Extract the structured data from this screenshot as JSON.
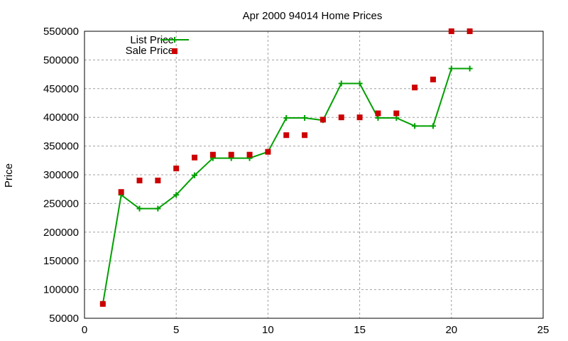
{
  "chart_data": {
    "type": "line",
    "title": "Apr 2000 94014 Home Prices",
    "xlabel": "",
    "ylabel": "Price",
    "xlim": [
      0,
      25
    ],
    "ylim": [
      50000,
      550000
    ],
    "x_ticks": [
      0,
      5,
      10,
      15,
      20,
      25
    ],
    "y_ticks": [
      50000,
      100000,
      150000,
      200000,
      250000,
      300000,
      350000,
      400000,
      450000,
      500000,
      550000
    ],
    "grid": true,
    "legend_position": "top-left",
    "x": [
      1,
      2,
      3,
      4,
      5,
      6,
      7,
      8,
      9,
      10,
      11,
      12,
      13,
      14,
      15,
      16,
      17,
      18,
      19,
      20,
      21
    ],
    "series": [
      {
        "name": "List Price",
        "style": "linespoints",
        "color": "#00a000",
        "values": [
          75000,
          265000,
          241000,
          241000,
          265000,
          299000,
          329000,
          329000,
          329000,
          340000,
          399000,
          399000,
          395000,
          459000,
          459000,
          399000,
          399000,
          385000,
          385000,
          485000,
          485000
        ]
      },
      {
        "name": "Sale Price",
        "style": "points",
        "color": "#cc0000",
        "values": [
          75000,
          270000,
          290000,
          290000,
          311000,
          330000,
          335000,
          335000,
          335000,
          340000,
          369000,
          369000,
          396000,
          400000,
          400000,
          407000,
          407000,
          452000,
          466000,
          550000,
          550000
        ]
      }
    ]
  }
}
